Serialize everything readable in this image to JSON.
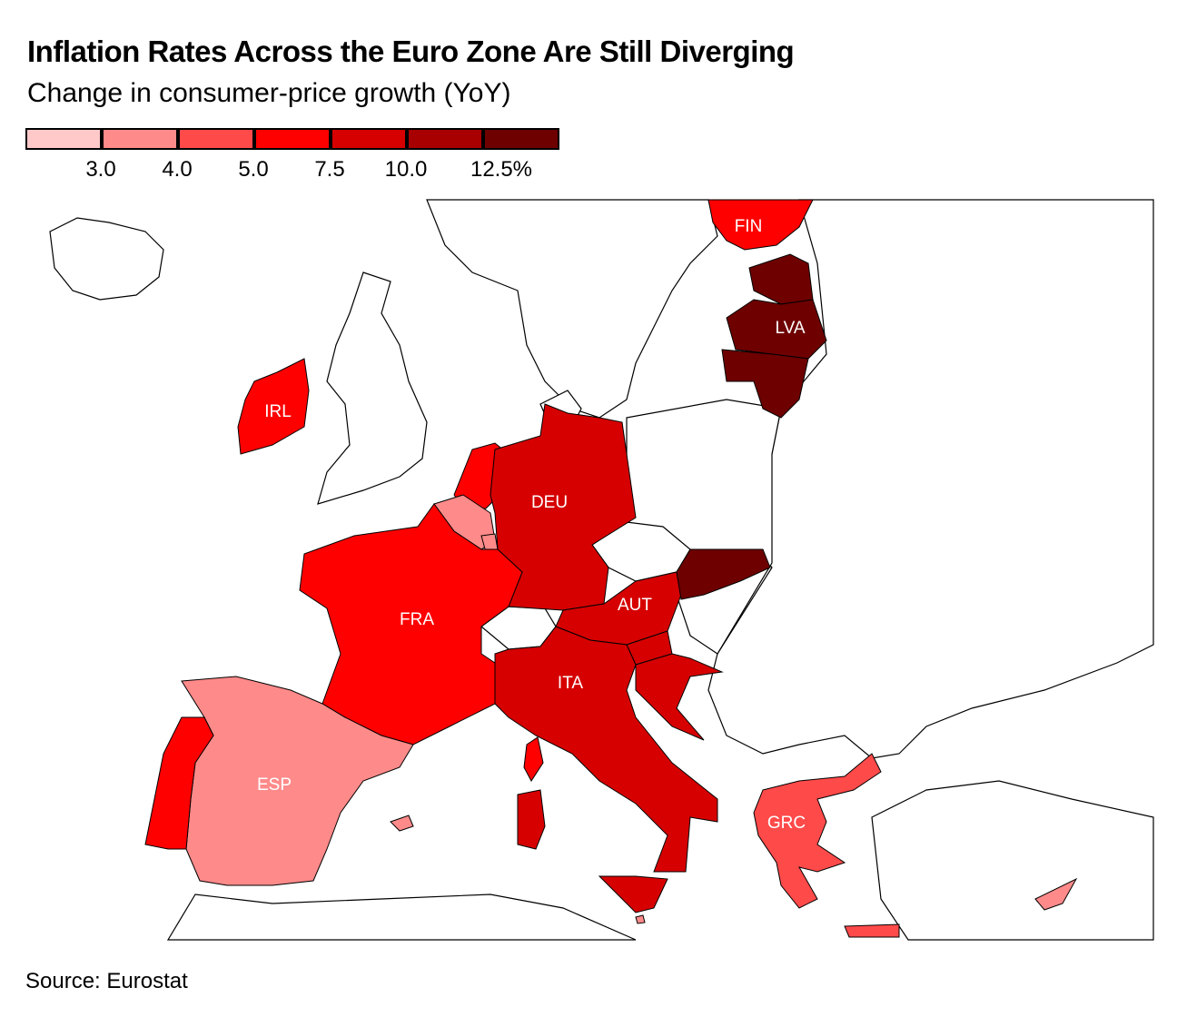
{
  "header": {
    "title": "Inflation Rates Across the Euro Zone Are Still Diverging",
    "subtitle": "Change in consumer-price growth (YoY)"
  },
  "legend": {
    "bins": [
      {
        "color": "#ffc9c9"
      },
      {
        "color": "#ff8a8a"
      },
      {
        "color": "#ff4a4a"
      },
      {
        "color": "#ff0000"
      },
      {
        "color": "#d60000"
      },
      {
        "color": "#a80000"
      },
      {
        "color": "#6e0000"
      }
    ],
    "ticks": [
      "3.0",
      "4.0",
      "5.0",
      "7.5",
      "10.0",
      "12.5%"
    ]
  },
  "map": {
    "countries": [
      {
        "code": "FIN",
        "label": "FIN",
        "color": "#ff0000"
      },
      {
        "code": "LVA",
        "label": "LVA",
        "color": "#6e0000"
      },
      {
        "code": "IRL",
        "label": "IRL",
        "color": "#ff0000"
      },
      {
        "code": "DEU",
        "label": "DEU",
        "color": "#d60000"
      },
      {
        "code": "FRA",
        "label": "FRA",
        "color": "#ff0000"
      },
      {
        "code": "AUT",
        "label": "AUT",
        "color": "#d60000"
      },
      {
        "code": "ITA",
        "label": "ITA",
        "color": "#d60000"
      },
      {
        "code": "ESP",
        "label": "ESP",
        "color": "#ff8a8a"
      },
      {
        "code": "GRC",
        "label": "GRC",
        "color": "#ff4a4a"
      }
    ],
    "unlabeled": [
      {
        "code": "NLD",
        "color": "#ff0000"
      },
      {
        "code": "BEL",
        "color": "#ff8a8a"
      },
      {
        "code": "LUX",
        "color": "#ff8a8a"
      },
      {
        "code": "PRT",
        "color": "#ff0000"
      },
      {
        "code": "SVK",
        "color": "#6e0000"
      },
      {
        "code": "SVN",
        "color": "#d60000"
      },
      {
        "code": "HRV",
        "color": "#d60000"
      },
      {
        "code": "EST",
        "color": "#6e0000"
      },
      {
        "code": "LTU",
        "color": "#6e0000"
      },
      {
        "code": "CYP",
        "color": "#ff8a8a"
      },
      {
        "code": "MLT",
        "color": "#ff8a8a"
      }
    ]
  },
  "footer": {
    "source": "Source: Eurostat"
  }
}
